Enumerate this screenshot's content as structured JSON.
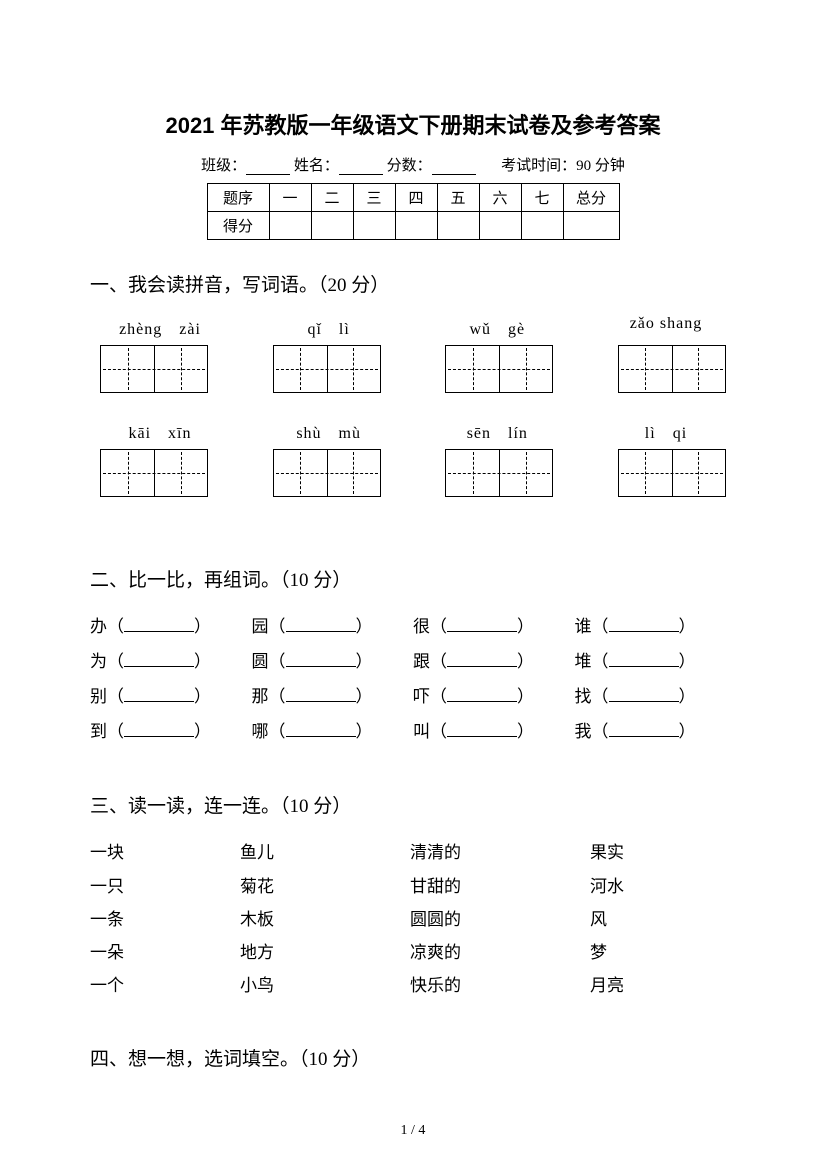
{
  "title": "2021 年苏教版一年级语文下册期末试卷及参考答案",
  "info": {
    "class_label": "班级：",
    "name_label": "姓名：",
    "score_label": "分数：",
    "exam_time": "考试时间：90 分钟"
  },
  "score_table": {
    "row_header": [
      "题序",
      "一",
      "二",
      "三",
      "四",
      "五",
      "六",
      "七",
      "总分"
    ],
    "row_score_label": "得分"
  },
  "section1": {
    "title": "一、我会读拼音，写词语。（20 分）",
    "pinyin_row1": [
      "zhèng　zài",
      "qǐ　lì",
      "wǔ　gè",
      "zǎo shang"
    ],
    "pinyin_row2": [
      "kāi　xīn",
      "shù　mù",
      "sēn　lín",
      "lì　qi"
    ]
  },
  "section2": {
    "title": "二、比一比，再组词。（10 分）",
    "rows": [
      [
        "办",
        "园",
        "很",
        "谁"
      ],
      [
        "为",
        "圆",
        "跟",
        "堆"
      ],
      [
        "别",
        "那",
        "吓",
        "找"
      ],
      [
        "到",
        "哪",
        "叫",
        "我"
      ]
    ]
  },
  "section3": {
    "title": "三、读一读，连一连。（10 分）",
    "left_pairs": [
      [
        "一块",
        "鱼儿"
      ],
      [
        "一只",
        "菊花"
      ],
      [
        "一条",
        "木板"
      ],
      [
        "一朵",
        "地方"
      ],
      [
        "一个",
        "小鸟"
      ]
    ],
    "right_pairs": [
      [
        "清清的",
        "果实"
      ],
      [
        "甘甜的",
        "河水"
      ],
      [
        "圆圆的",
        "风"
      ],
      [
        "凉爽的",
        "梦"
      ],
      [
        "快乐的",
        "月亮"
      ]
    ]
  },
  "section4": {
    "title": "四、想一想，选词填空。（10 分）"
  },
  "page_number": "1 / 4"
}
